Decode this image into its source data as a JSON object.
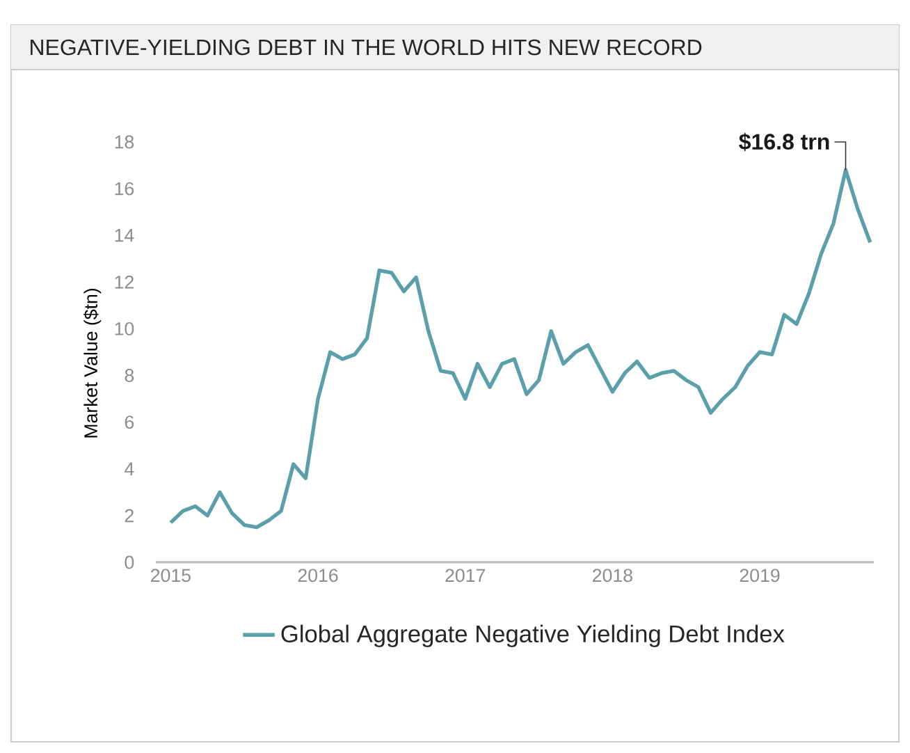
{
  "chart_data": {
    "type": "line",
    "title": "NEGATIVE-YIELDING DEBT IN THE WORLD HITS NEW RECORD",
    "ylabel": "Market Value ($tn)",
    "x": [
      "2015-01",
      "2015-02",
      "2015-03",
      "2015-04",
      "2015-05",
      "2015-06",
      "2015-07",
      "2015-08",
      "2015-09",
      "2015-10",
      "2015-11",
      "2015-12",
      "2016-01",
      "2016-02",
      "2016-03",
      "2016-04",
      "2016-05",
      "2016-06",
      "2016-07",
      "2016-08",
      "2016-09",
      "2016-10",
      "2016-11",
      "2016-12",
      "2017-01",
      "2017-02",
      "2017-03",
      "2017-04",
      "2017-05",
      "2017-06",
      "2017-07",
      "2017-08",
      "2017-09",
      "2017-10",
      "2017-11",
      "2017-12",
      "2018-01",
      "2018-02",
      "2018-03",
      "2018-04",
      "2018-05",
      "2018-06",
      "2018-07",
      "2018-08",
      "2018-09",
      "2018-10",
      "2018-11",
      "2018-12",
      "2019-01",
      "2019-02",
      "2019-03",
      "2019-04",
      "2019-05",
      "2019-06",
      "2019-07",
      "2019-08",
      "2019-09",
      "2019-10"
    ],
    "series": [
      {
        "name": "Global Aggregate Negative Yielding Debt Index",
        "color": "#5b9faa",
        "values": [
          1.7,
          2.2,
          2.4,
          2.0,
          3.0,
          2.1,
          1.6,
          1.5,
          1.8,
          2.2,
          4.2,
          3.6,
          7.0,
          9.0,
          8.7,
          8.9,
          9.6,
          12.5,
          12.4,
          11.6,
          12.2,
          9.9,
          8.2,
          8.1,
          7.0,
          8.5,
          7.5,
          8.5,
          8.7,
          7.2,
          7.8,
          9.9,
          8.5,
          9.0,
          9.3,
          8.3,
          7.3,
          8.1,
          8.6,
          7.9,
          8.1,
          8.2,
          7.8,
          7.5,
          6.4,
          7.0,
          7.5,
          8.4,
          9.0,
          8.9,
          10.6,
          10.2,
          11.5,
          13.2,
          14.5,
          16.8,
          15.1,
          13.7
        ]
      }
    ],
    "xlim": [
      "2014-11-25",
      "2019-10-10"
    ],
    "xticks": [
      {
        "value": "2015-01-01",
        "label": "2015"
      },
      {
        "value": "2016-01-01",
        "label": "2016"
      },
      {
        "value": "2017-01-01",
        "label": "2017"
      },
      {
        "value": "2018-01-01",
        "label": "2018"
      },
      {
        "value": "2019-01-01",
        "label": "2019"
      }
    ],
    "ylim": [
      0,
      18
    ],
    "yticks": [
      0,
      2,
      4,
      6,
      8,
      10,
      12,
      14,
      16,
      18
    ],
    "annotations": [
      {
        "text": "$16.8 trn",
        "x": "2019-08",
        "y": 16.8
      }
    ],
    "legend": "bottom"
  }
}
